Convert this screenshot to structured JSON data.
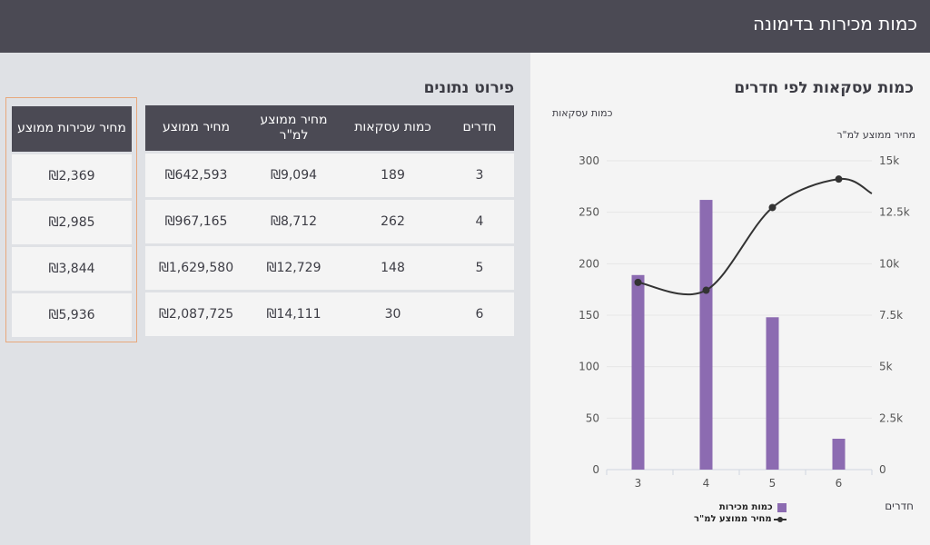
{
  "header": {
    "title": "כמות מכירות בדימונה"
  },
  "details": {
    "title": "פירוט נתונים",
    "columns": [
      "חדרים",
      "כמות עסקאות",
      "מחיר ממוצע למ\"ר",
      "מחיר ממוצע"
    ],
    "rows": [
      [
        "3",
        "189",
        "₪9,094",
        "₪642,593"
      ],
      [
        "4",
        "262",
        "₪8,712",
        "₪967,165"
      ],
      [
        "5",
        "148",
        "₪12,729",
        "₪1,629,580"
      ],
      [
        "6",
        "30",
        "₪14,111",
        "₪2,087,725"
      ]
    ]
  },
  "rent": {
    "header": "מחיר שכירות ממוצע",
    "values": [
      "₪2,369",
      "₪2,985",
      "₪3,844",
      "₪5,936"
    ]
  },
  "colors": {
    "bar": "#8c6bb1",
    "line": "#333333",
    "header_bg": "#4b4a54",
    "highlight_border": "#e8a87c"
  },
  "chart_data": {
    "type": "bar",
    "title": "כמות עסקאות לפי חדרים",
    "xlabel": "חדרים",
    "ylabel": "כמות עסקאות",
    "y2label": "מחיר ממוצע למ\"ר",
    "categories": [
      "3",
      "4",
      "5",
      "6"
    ],
    "series": [
      {
        "name": "כמות מכירות",
        "type": "bar",
        "axis": "left",
        "values": [
          189,
          262,
          148,
          30
        ]
      },
      {
        "name": "מחיר ממוצע למ\"ר",
        "type": "line",
        "axis": "right",
        "values": [
          9094,
          8712,
          12729,
          14111
        ]
      }
    ],
    "ylim": [
      0,
      300
    ],
    "y2lim": [
      0,
      15000
    ],
    "yticks": [
      "0",
      "50",
      "100",
      "150",
      "200",
      "250",
      "300"
    ],
    "y2ticks": [
      "0",
      "2.5k",
      "5k",
      "7.5k",
      "10k",
      "12.5k",
      "15k"
    ],
    "grid": true,
    "legend": "bottom"
  }
}
